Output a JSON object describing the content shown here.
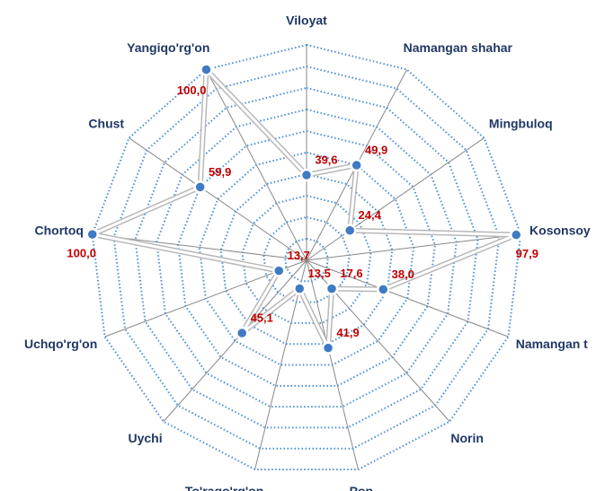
{
  "chart_data": {
    "type": "radar",
    "categories": [
      "Viloyat",
      "Namangan shahar",
      "Mingbuloq",
      "Kosonsoy",
      "Namangan t",
      "Norin",
      "Pop",
      "To'rago'rg'on",
      "Uychi",
      "Uchqo'rg'on",
      "Chortoq",
      "Chust",
      "Yangiqo'rg'on"
    ],
    "values": [
      39.6,
      49.9,
      24.4,
      97.9,
      38.0,
      17.6,
      41.9,
      13.5,
      45.1,
      13.7,
      100.0,
      59.9,
      100.0
    ],
    "value_labels": [
      "39,6",
      "49,9",
      "24,4",
      "97,9",
      "38,0",
      "17,6",
      "41,9",
      "13,5",
      "45,1",
      "13,7",
      "100,0",
      "59,9",
      "100,0"
    ],
    "color": "#3f7ac4",
    "ylim": [
      0,
      100
    ],
    "yticks": [
      10,
      20,
      30,
      40,
      50,
      60,
      70,
      80,
      90,
      100
    ],
    "grid": true
  }
}
